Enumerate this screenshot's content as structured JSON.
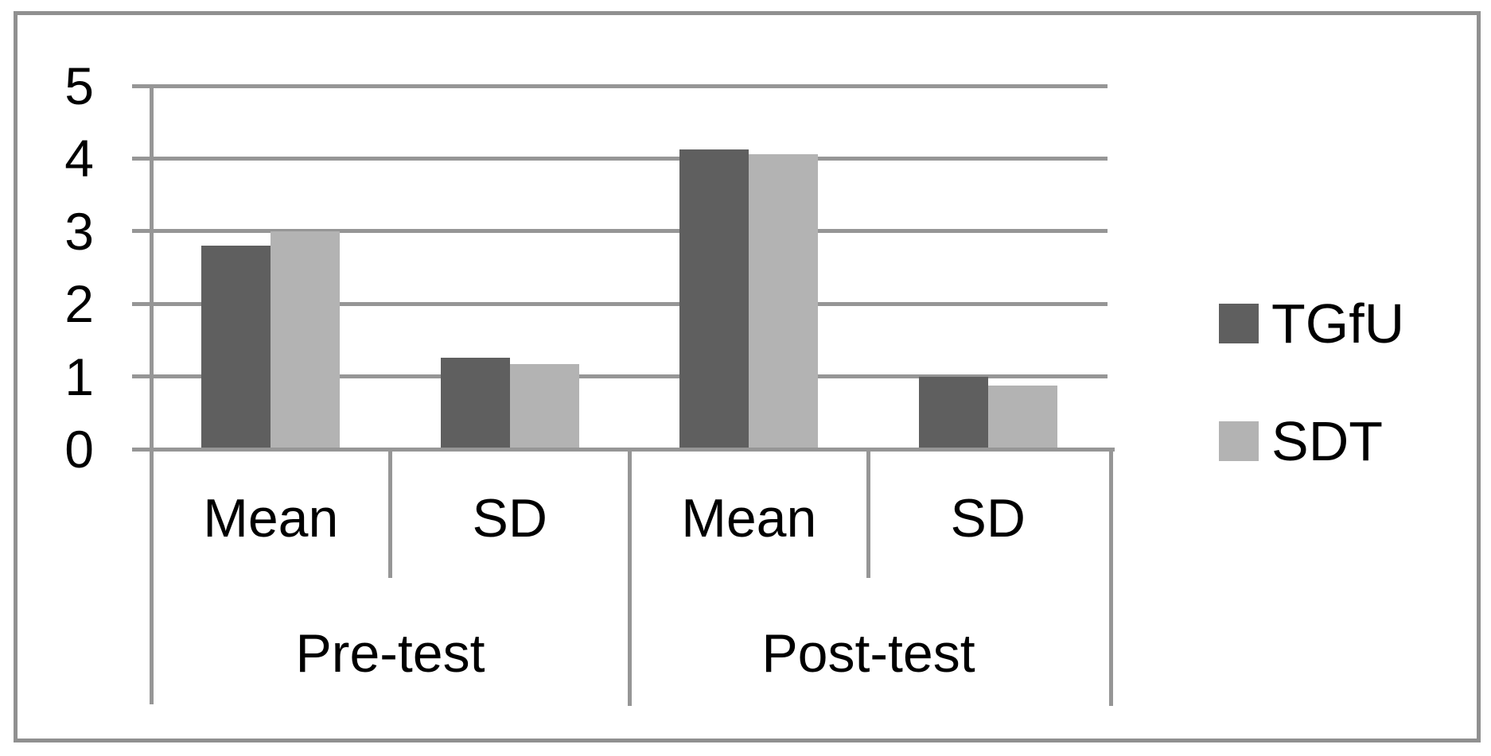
{
  "figure": {
    "background": "#ffffff",
    "border_color": "#909090",
    "gridline_color": "#969696",
    "text_color": "#000000"
  },
  "legend": {
    "position": "right",
    "items": [
      {
        "label": "TGfU",
        "color": "#5f5f5f"
      },
      {
        "label": "SDT",
        "color": "#b3b3b3"
      }
    ]
  },
  "chart_data": {
    "type": "bar",
    "title": "",
    "xlabel": "",
    "ylabel": "",
    "groups": [
      "Pre-test",
      "Post-test"
    ],
    "categories": [
      "Mean",
      "SD",
      "Mean",
      "SD"
    ],
    "category_groups": [
      0,
      0,
      1,
      1
    ],
    "series": [
      {
        "name": "TGfU",
        "color": "#5f5f5f",
        "values": [
          2.8,
          1.26,
          4.13,
          1.0
        ]
      },
      {
        "name": "SDT",
        "color": "#b3b3b3",
        "values": [
          3.0,
          1.17,
          4.06,
          0.87
        ]
      }
    ],
    "ylim": [
      0,
      5
    ],
    "yticks": [
      0,
      1,
      2,
      3,
      4,
      5
    ],
    "grid": true,
    "legend_position": "right"
  }
}
